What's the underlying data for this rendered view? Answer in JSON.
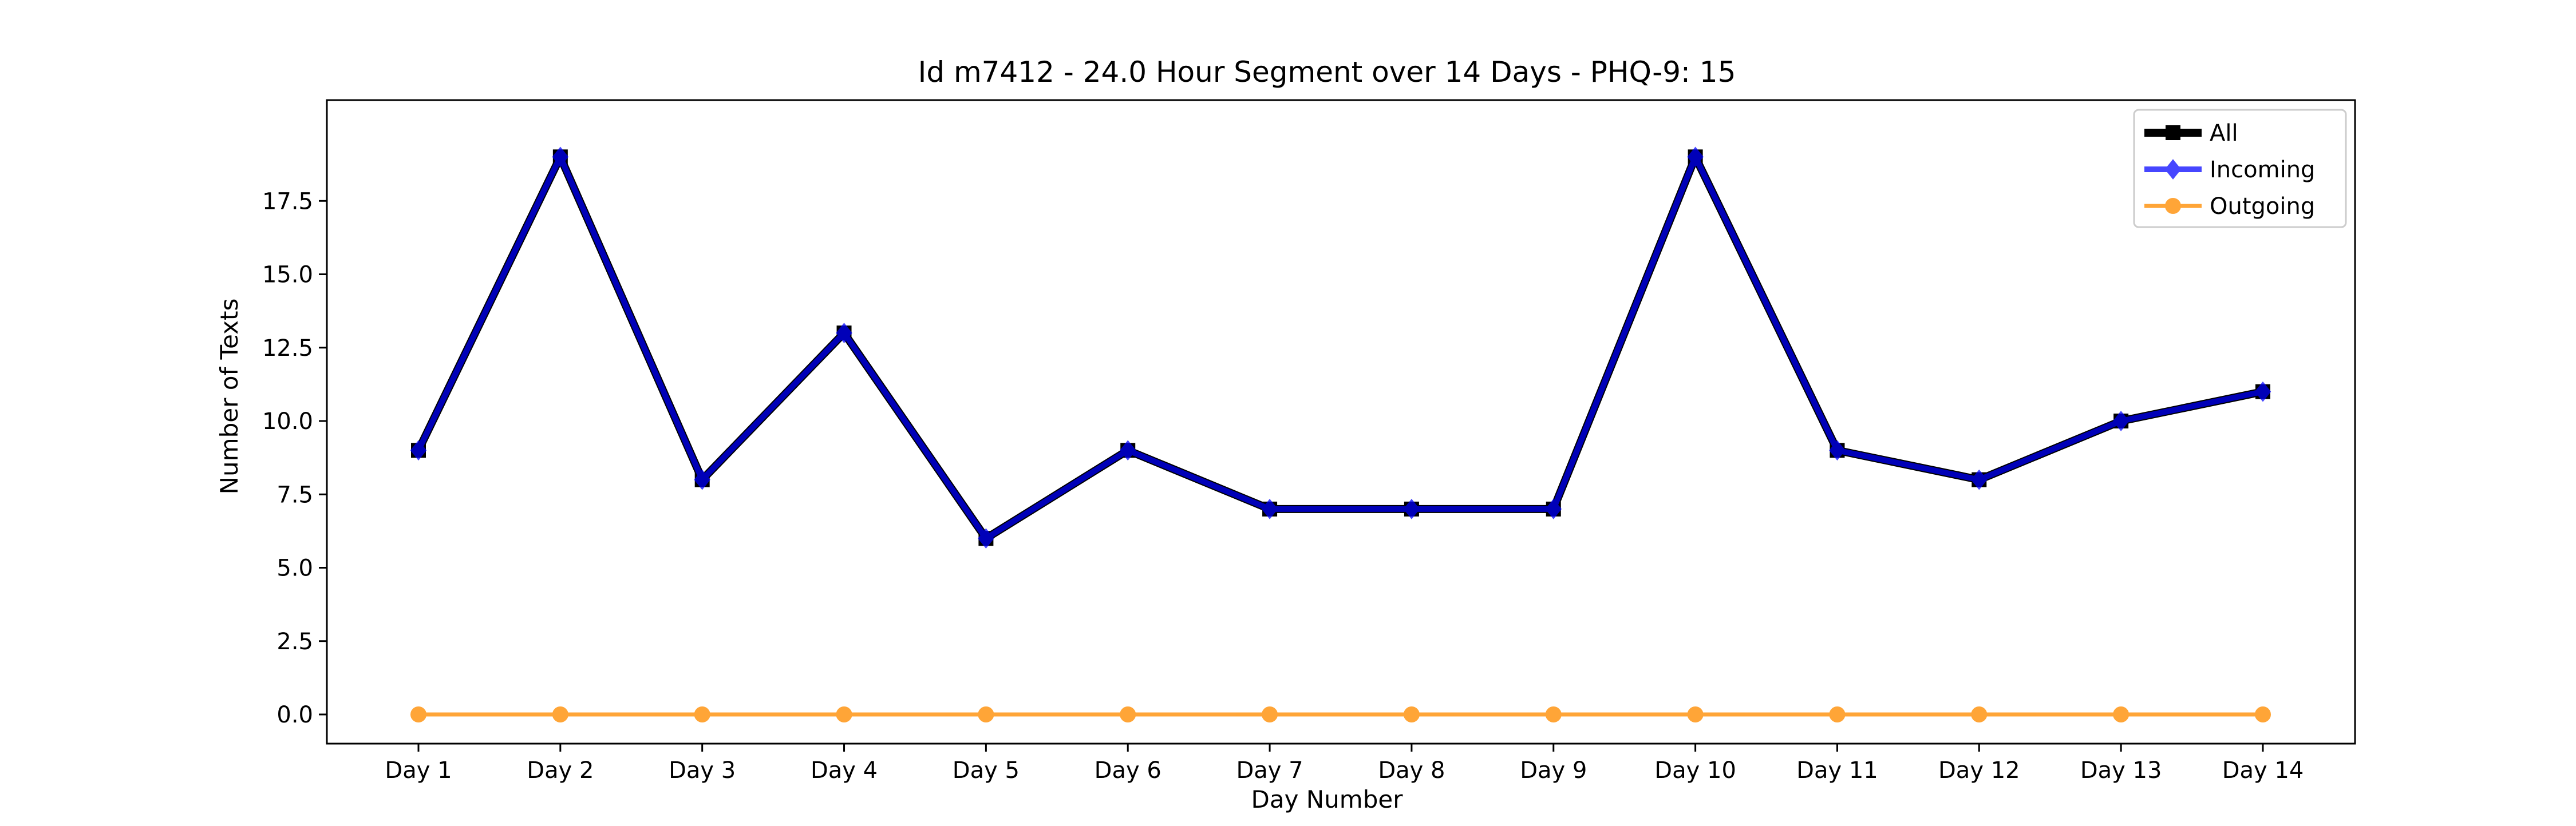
{
  "chart_data": {
    "type": "line",
    "title": "Id m7412 - 24.0 Hour Segment over 14 Days - PHQ-9: 15",
    "xlabel": "Day Number",
    "ylabel": "Number of Texts",
    "categories": [
      "Day 1",
      "Day 2",
      "Day 3",
      "Day 4",
      "Day 5",
      "Day 6",
      "Day 7",
      "Day 8",
      "Day 9",
      "Day 10",
      "Day 11",
      "Day 12",
      "Day 13",
      "Day 14"
    ],
    "ylim": [
      -1,
      20
    ],
    "yticks": [
      0.0,
      2.5,
      5.0,
      7.5,
      10.0,
      12.5,
      15.0,
      17.5
    ],
    "ytick_labels": [
      "0.0",
      "2.5",
      "5.0",
      "7.5",
      "10.0",
      "12.5",
      "15.0",
      "17.5"
    ],
    "grid": false,
    "legend_position": "top-right",
    "series": [
      {
        "name": "All",
        "color": "#000000",
        "marker": "square",
        "values": [
          9,
          19,
          8,
          13,
          6,
          9,
          7,
          7,
          7,
          19,
          9,
          8,
          10,
          11
        ]
      },
      {
        "name": "Incoming",
        "color": "#0000ff",
        "marker": "diamond",
        "values": [
          9,
          19,
          8,
          13,
          6,
          9,
          7,
          7,
          7,
          19,
          9,
          8,
          10,
          11
        ]
      },
      {
        "name": "Outgoing",
        "color": "#ff8c00",
        "marker": "circle",
        "values": [
          0,
          0,
          0,
          0,
          0,
          0,
          0,
          0,
          0,
          0,
          0,
          0,
          0,
          0
        ]
      }
    ]
  }
}
